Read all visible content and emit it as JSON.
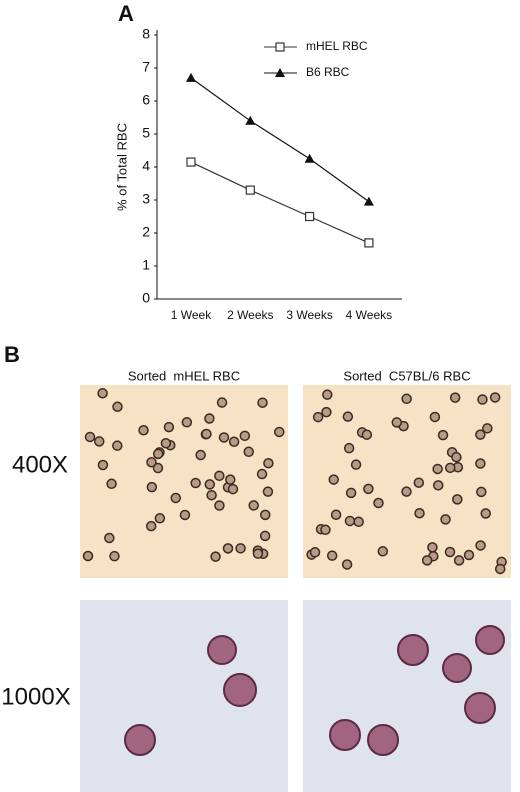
{
  "panel_labels": [
    "A",
    "B"
  ],
  "chart_data": {
    "type": "line",
    "y_label": "% of Total RBC",
    "categories": [
      "1 Week",
      "2 Weeks",
      "3 Weeks",
      "4 Weeks"
    ],
    "series": [
      {
        "name": "mHEL RBC",
        "color": "#333333",
        "marker": "open-square",
        "values": [
          4.15,
          3.3,
          2.5,
          1.7
        ]
      },
      {
        "name": "B6 RBC",
        "color": "#111111",
        "marker": "filled-triangle",
        "values": [
          6.7,
          5.4,
          4.25,
          2.95
        ]
      }
    ],
    "ylim": [
      0,
      8
    ],
    "yticks": [
      0,
      1,
      2,
      3,
      4,
      5,
      6,
      7,
      8
    ],
    "legend": "top-right",
    "grid": false
  },
  "micrographs": {
    "columns": [
      "Sorted  mHEL RBC",
      "Sorted  C57BL/6 RBC"
    ],
    "rows": [
      "400X",
      "1000X"
    ]
  }
}
